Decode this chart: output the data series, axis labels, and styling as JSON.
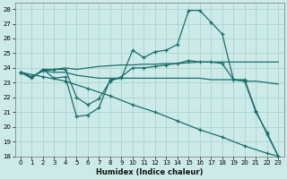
{
  "xlabel": "Humidex (Indice chaleur)",
  "bg_color": "#cceae8",
  "grid_color": "#aad4d0",
  "line_color": "#1a6e6a",
  "xlim": [
    -0.5,
    23.5
  ],
  "ylim": [
    18,
    28.4
  ],
  "yticks": [
    18,
    19,
    20,
    21,
    22,
    23,
    24,
    25,
    26,
    27,
    28
  ],
  "xticks": [
    0,
    1,
    2,
    3,
    4,
    5,
    6,
    7,
    8,
    9,
    10,
    11,
    12,
    13,
    14,
    15,
    16,
    17,
    18,
    19,
    20,
    21,
    22,
    23
  ],
  "series": [
    {
      "x": [
        0,
        1,
        2,
        3,
        4,
        5,
        6,
        7,
        8,
        9,
        10,
        11,
        12,
        13,
        14,
        15,
        16,
        17,
        18,
        19,
        20,
        21,
        22,
        23
      ],
      "y": [
        23.7,
        23.3,
        23.9,
        23.3,
        23.4,
        20.7,
        20.8,
        21.3,
        23.2,
        23.3,
        25.2,
        24.7,
        25.1,
        25.2,
        25.6,
        27.9,
        27.9,
        27.1,
        26.3,
        23.2,
        23.2,
        21.1,
        19.5,
        18.0
      ],
      "marker": "+"
    },
    {
      "x": [
        0,
        1,
        2,
        3,
        4,
        5,
        6,
        7,
        8,
        9,
        10,
        11,
        12,
        13,
        14,
        15,
        16,
        17,
        18,
        19,
        20,
        21,
        22,
        23
      ],
      "y": [
        23.7,
        23.3,
        23.9,
        23.9,
        24.0,
        23.9,
        24.0,
        24.1,
        24.15,
        24.2,
        24.2,
        24.25,
        24.25,
        24.3,
        24.3,
        24.35,
        24.4,
        24.4,
        24.4,
        24.4,
        24.4,
        24.4,
        24.4,
        24.4
      ],
      "marker": null
    },
    {
      "x": [
        0,
        1,
        2,
        3,
        4,
        5,
        6,
        7,
        8,
        9,
        10,
        11,
        12,
        13,
        14,
        15,
        16,
        17,
        18,
        19,
        20,
        21,
        22,
        23
      ],
      "y": [
        23.7,
        23.4,
        23.8,
        23.7,
        23.7,
        23.5,
        23.4,
        23.3,
        23.3,
        23.3,
        23.3,
        23.3,
        23.3,
        23.3,
        23.3,
        23.3,
        23.3,
        23.2,
        23.2,
        23.2,
        23.1,
        23.1,
        23.0,
        22.9
      ],
      "marker": null
    },
    {
      "x": [
        0,
        2,
        4,
        6,
        8,
        10,
        12,
        14,
        16,
        18,
        20,
        22,
        23
      ],
      "y": [
        23.7,
        23.4,
        23.1,
        22.6,
        22.1,
        21.5,
        21.0,
        20.4,
        19.8,
        19.3,
        18.7,
        18.2,
        18.0
      ],
      "marker": "+"
    },
    {
      "x": [
        0,
        1,
        2,
        3,
        4,
        5,
        6,
        7,
        8,
        9,
        10,
        11,
        12,
        13,
        14,
        15,
        16,
        17,
        18,
        19,
        20,
        21,
        22,
        23
      ],
      "y": [
        23.7,
        23.4,
        23.8,
        23.9,
        23.9,
        22.0,
        21.5,
        21.9,
        23.1,
        23.4,
        24.0,
        24.0,
        24.1,
        24.2,
        24.3,
        24.5,
        24.4,
        24.4,
        24.3,
        23.2,
        23.1,
        21.0,
        19.6,
        18.0
      ],
      "marker": "+"
    }
  ]
}
